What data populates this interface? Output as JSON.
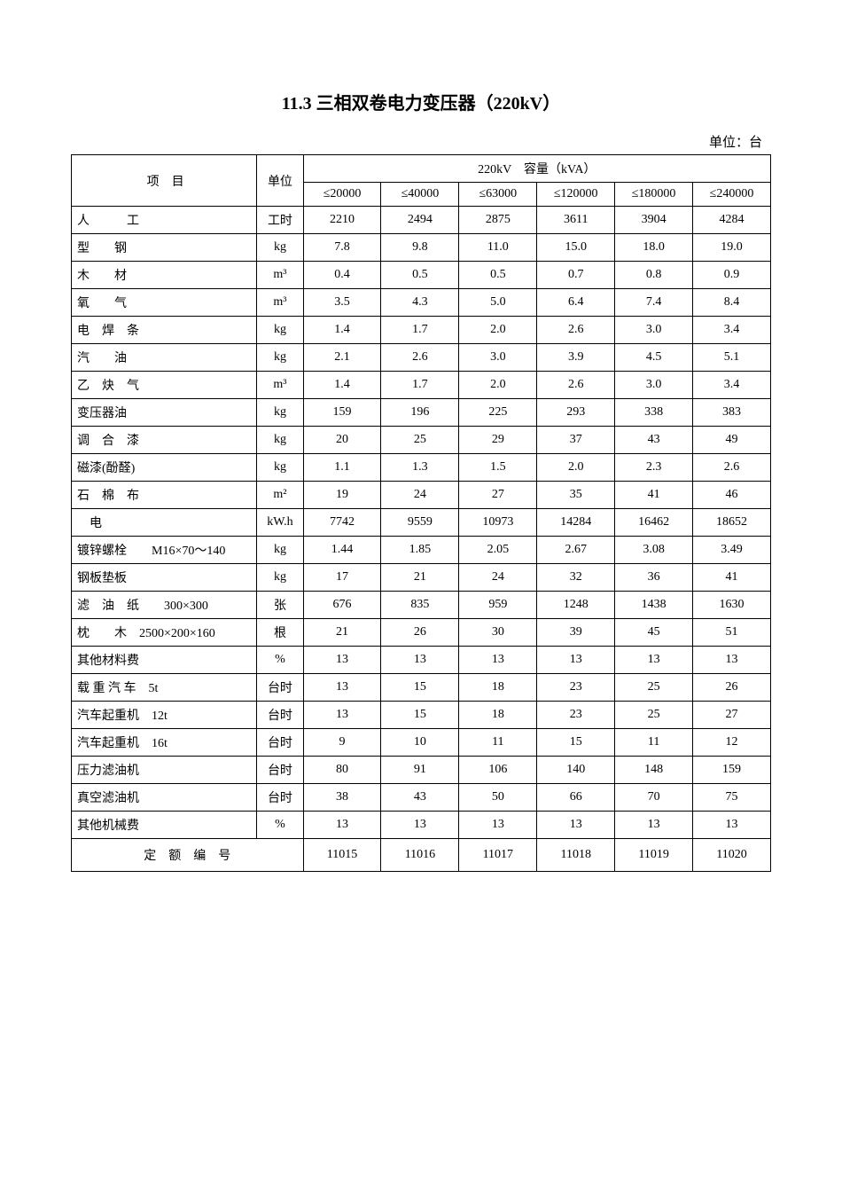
{
  "title": "11.3  三相双卷电力变压器（220kV）",
  "unit_label": "单位：台",
  "header": {
    "item": "项　目",
    "unit": "单位",
    "group": "220kV　容量（kVA）",
    "cols": [
      "≤20000",
      "≤40000",
      "≤63000",
      "≤120000",
      "≤180000",
      "≤240000"
    ]
  },
  "rows": [
    {
      "item": "人　　　工",
      "unit": "工时",
      "v": [
        "2210",
        "2494",
        "2875",
        "3611",
        "3904",
        "4284"
      ]
    },
    {
      "item": "型　　钢",
      "unit": "kg",
      "v": [
        "7.8",
        "9.8",
        "11.0",
        "15.0",
        "18.0",
        "19.0"
      ]
    },
    {
      "item": "木　　材",
      "unit": "m³",
      "v": [
        "0.4",
        "0.5",
        "0.5",
        "0.7",
        "0.8",
        "0.9"
      ]
    },
    {
      "item": "氧　　气",
      "unit": "m³",
      "v": [
        "3.5",
        "4.3",
        "5.0",
        "6.4",
        "7.4",
        "8.4"
      ]
    },
    {
      "item": "电　焊　条",
      "unit": "kg",
      "v": [
        "1.4",
        "1.7",
        "2.0",
        "2.6",
        "3.0",
        "3.4"
      ]
    },
    {
      "item": "汽　　油",
      "unit": "kg",
      "v": [
        "2.1",
        "2.6",
        "3.0",
        "3.9",
        "4.5",
        "5.1"
      ]
    },
    {
      "item": "乙　炔　气",
      "unit": "m³",
      "v": [
        "1.4",
        "1.7",
        "2.0",
        "2.6",
        "3.0",
        "3.4"
      ]
    },
    {
      "item": "变压器油",
      "unit": "kg",
      "v": [
        "159",
        "196",
        "225",
        "293",
        "338",
        "383"
      ]
    },
    {
      "item": "调　合　漆",
      "unit": "kg",
      "v": [
        "20",
        "25",
        "29",
        "37",
        "43",
        "49"
      ]
    },
    {
      "item": "磁漆(酚醛)",
      "unit": "kg",
      "v": [
        "1.1",
        "1.3",
        "1.5",
        "2.0",
        "2.3",
        "2.6"
      ]
    },
    {
      "item": "石　棉　布",
      "unit": "m²",
      "v": [
        "19",
        "24",
        "27",
        "35",
        "41",
        "46"
      ]
    },
    {
      "item": "　电",
      "unit": "kW.h",
      "v": [
        "7742",
        "9559",
        "10973",
        "14284",
        "16462",
        "18652"
      ]
    },
    {
      "item": "镀锌螺栓　　M16×70～140",
      "unit": "kg",
      "v": [
        "1.44",
        "1.85",
        "2.05",
        "2.67",
        "3.08",
        "3.49"
      ]
    },
    {
      "item": "钢板垫板",
      "unit": "kg",
      "v": [
        "17",
        "21",
        "24",
        "32",
        "36",
        "41"
      ]
    },
    {
      "item": "滤　油　纸　　300×300",
      "unit": "张",
      "v": [
        "676",
        "835",
        "959",
        "1248",
        "1438",
        "1630"
      ]
    },
    {
      "item": "枕　　木　2500×200×160",
      "unit": "根",
      "v": [
        "21",
        "26",
        "30",
        "39",
        "45",
        "51"
      ]
    },
    {
      "item": "其他材料费",
      "unit": "%",
      "v": [
        "13",
        "13",
        "13",
        "13",
        "13",
        "13"
      ]
    },
    {
      "item": "载 重 汽 车　5t",
      "unit": "台时",
      "v": [
        "13",
        "15",
        "18",
        "23",
        "25",
        "26"
      ]
    },
    {
      "item": "汽车起重机　12t",
      "unit": "台时",
      "v": [
        "13",
        "15",
        "18",
        "23",
        "25",
        "27"
      ]
    },
    {
      "item": "汽车起重机　16t",
      "unit": "台时",
      "v": [
        "9",
        "10",
        "11",
        "15",
        "11",
        "12"
      ]
    },
    {
      "item": "压力滤油机",
      "unit": "台时",
      "v": [
        "80",
        "91",
        "106",
        "140",
        "148",
        "159"
      ]
    },
    {
      "item": "真空滤油机",
      "unit": "台时",
      "v": [
        "38",
        "43",
        "50",
        "66",
        "70",
        "75"
      ]
    },
    {
      "item": "其他机械费",
      "unit": "%",
      "v": [
        "13",
        "13",
        "13",
        "13",
        "13",
        "13"
      ]
    }
  ],
  "quota": {
    "label": "定　额　编　号",
    "v": [
      "11015",
      "11016",
      "11017",
      "11018",
      "11019",
      "11020"
    ]
  }
}
